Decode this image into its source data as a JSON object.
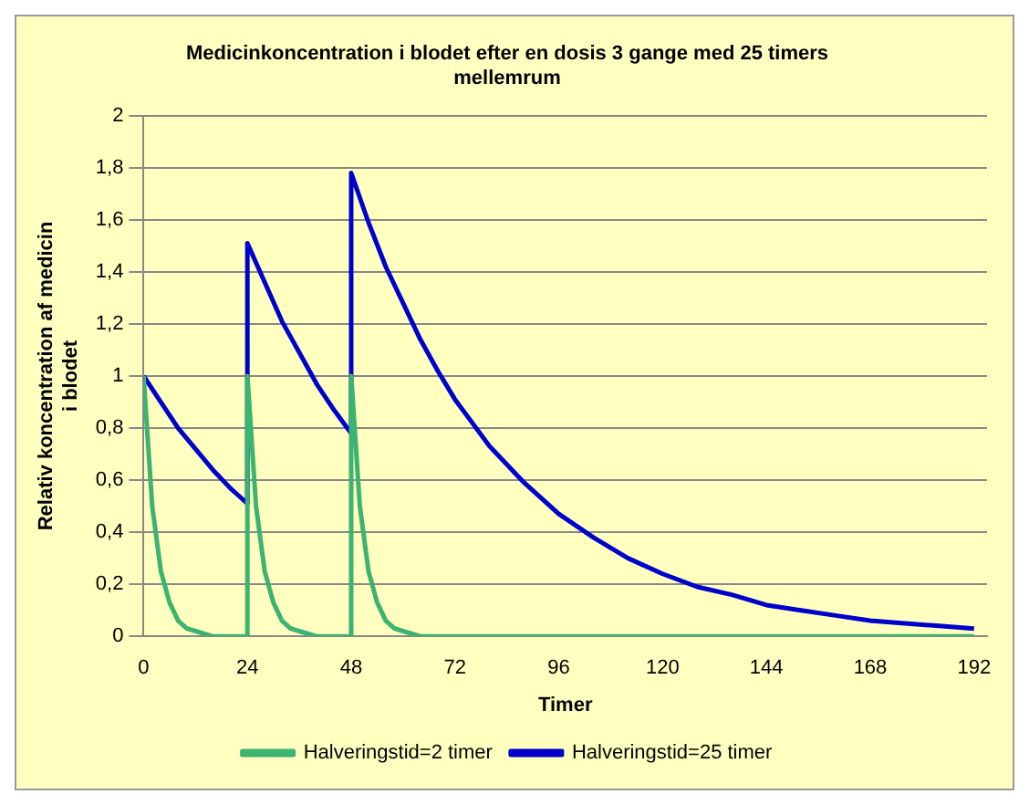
{
  "chart_data": {
    "type": "line",
    "title": "Medicinkoncentration i blodet efter en dosis 3 gange med 25 timers mellemrum",
    "xlabel": "Timer",
    "ylabel": "Relativ koncentration af medicin i blodet",
    "xlim": [
      0,
      195
    ],
    "xticks": [
      0,
      24,
      48,
      72,
      96,
      120,
      144,
      168,
      192
    ],
    "ylim": [
      0,
      2
    ],
    "yticks": [
      {
        "value": 0,
        "label": "0"
      },
      {
        "value": 0.2,
        "label": "0,2"
      },
      {
        "value": 0.4,
        "label": "0,4"
      },
      {
        "value": 0.6,
        "label": "0,6"
      },
      {
        "value": 0.8,
        "label": "0,8"
      },
      {
        "value": 1,
        "label": "1"
      },
      {
        "value": 1.2,
        "label": "1,2"
      },
      {
        "value": 1.4,
        "label": "1,4"
      },
      {
        "value": 1.6,
        "label": "1,6"
      },
      {
        "value": 1.8,
        "label": "1,8"
      },
      {
        "value": 2,
        "label": "2"
      }
    ],
    "grid": "y",
    "legend": "bottom",
    "marker": "none",
    "series": [
      {
        "name": "Halveringstid=2 timer",
        "color": "#3cb371",
        "x": [
          0,
          2,
          4,
          6,
          8,
          10,
          12,
          16,
          20,
          24,
          24,
          26,
          28,
          30,
          32,
          34,
          36,
          40,
          44,
          48,
          48,
          50,
          52,
          54,
          56,
          58,
          60,
          64,
          72,
          96,
          120,
          144,
          168,
          192
        ],
        "values": [
          1,
          0.5,
          0.25,
          0.13,
          0.06,
          0.03,
          0.02,
          0,
          0,
          0,
          1,
          0.5,
          0.25,
          0.13,
          0.06,
          0.03,
          0.02,
          0,
          0,
          0,
          1,
          0.5,
          0.25,
          0.13,
          0.06,
          0.03,
          0.02,
          0,
          0,
          0,
          0,
          0,
          0,
          0
        ]
      },
      {
        "name": "Halveringstid=25 timer",
        "color": "#0000cc",
        "x": [
          0,
          4,
          8,
          12,
          16,
          20,
          24,
          24,
          28,
          32,
          36,
          40,
          44,
          48,
          48,
          52,
          56,
          60,
          64,
          68,
          72,
          80,
          88,
          96,
          104,
          112,
          120,
          128,
          136,
          144,
          152,
          160,
          168,
          176,
          184,
          192
        ],
        "values": [
          1,
          0.9,
          0.8,
          0.72,
          0.64,
          0.57,
          0.51,
          1.51,
          1.36,
          1.21,
          1.09,
          0.97,
          0.87,
          0.78,
          1.78,
          1.59,
          1.42,
          1.28,
          1.14,
          1.02,
          0.91,
          0.73,
          0.59,
          0.47,
          0.38,
          0.3,
          0.24,
          0.19,
          0.16,
          0.12,
          0.1,
          0.08,
          0.06,
          0.05,
          0.04,
          0.03
        ]
      }
    ]
  }
}
